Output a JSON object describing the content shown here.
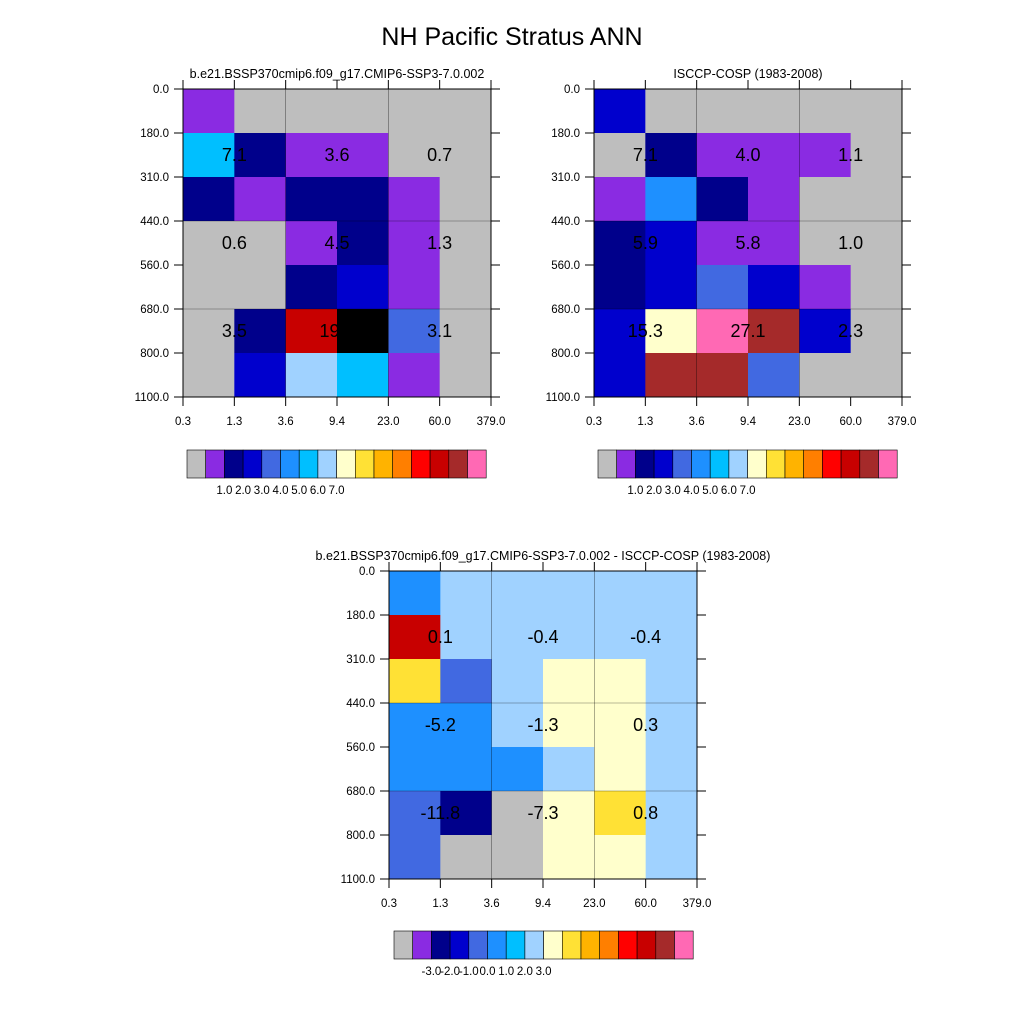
{
  "title": "NH Pacific Stratus ANN",
  "chart_data": [
    {
      "type": "heatmap",
      "title": "b.e21.BSSP370cmip6.f09_g17.CMIP6-SSP3-7.0.002",
      "x_tick_labels": [
        "0.3",
        "1.3",
        "3.6",
        "9.4",
        "23.0",
        "60.0",
        "379.0"
      ],
      "y_tick_labels": [
        "0.0",
        "180.0",
        "310.0",
        "440.0",
        "560.0",
        "680.0",
        "800.0",
        "1100.0"
      ],
      "color_index_grid": [
        [
          1,
          0,
          0,
          0,
          0,
          0
        ],
        [
          6,
          2,
          1,
          1,
          0,
          0
        ],
        [
          2,
          1,
          2,
          2,
          1,
          0
        ],
        [
          0,
          0,
          1,
          2,
          1,
          0
        ],
        [
          0,
          0,
          2,
          3,
          1,
          0
        ],
        [
          0,
          2,
          13,
          17,
          4,
          0
        ],
        [
          0,
          3,
          7,
          6,
          1,
          0
        ]
      ],
      "values": [
        {
          "row": 1,
          "col": 1,
          "text": "7.1"
        },
        {
          "row": 1,
          "col": 3,
          "text": "3.6"
        },
        {
          "row": 1,
          "col": 5,
          "text": "0.7"
        },
        {
          "row": 3,
          "col": 1,
          "text": "0.6"
        },
        {
          "row": 3,
          "col": 3,
          "text": "4.5"
        },
        {
          "row": 3,
          "col": 5,
          "text": "1.3"
        },
        {
          "row": 5,
          "col": 1,
          "text": "3.5"
        },
        {
          "row": 5,
          "col": 3,
          "text": "19.8"
        },
        {
          "row": 5,
          "col": 5,
          "text": "3.1"
        }
      ],
      "colorbar": {
        "colors": [
          "#bebebe",
          "#8a2be2",
          "#00008b",
          "#0000cd",
          "#4169e1",
          "#1e90ff",
          "#00bfff",
          "#a0d2ff",
          "#ffffcc",
          "#ffe135",
          "#ffb300",
          "#ff7f00",
          "#ff0000",
          "#c80000",
          "#a52a2a",
          "#ff69b4"
        ],
        "labels": [
          "1.0",
          "2.0",
          "3.0",
          "4.0",
          "5.0",
          "6.0",
          "7.0"
        ]
      }
    },
    {
      "type": "heatmap",
      "title": "ISCCP-COSP (1983-2008)",
      "x_tick_labels": [
        "0.3",
        "1.3",
        "3.6",
        "9.4",
        "23.0",
        "60.0",
        "379.0"
      ],
      "y_tick_labels": [
        "0.0",
        "180.0",
        "310.0",
        "440.0",
        "560.0",
        "680.0",
        "800.0",
        "1100.0"
      ],
      "color_index_grid": [
        [
          3,
          0,
          0,
          0,
          0,
          0
        ],
        [
          0,
          2,
          1,
          1,
          1,
          0
        ],
        [
          1,
          5,
          2,
          1,
          0,
          0
        ],
        [
          2,
          3,
          1,
          1,
          0,
          0
        ],
        [
          2,
          3,
          4,
          3,
          1,
          0
        ],
        [
          3,
          8,
          15,
          14,
          3,
          0
        ],
        [
          3,
          14,
          14,
          4,
          0,
          0
        ]
      ],
      "values": [
        {
          "row": 1,
          "col": 1,
          "text": "7.1"
        },
        {
          "row": 1,
          "col": 3,
          "text": "4.0"
        },
        {
          "row": 1,
          "col": 5,
          "text": "1.1"
        },
        {
          "row": 3,
          "col": 1,
          "text": "5.9"
        },
        {
          "row": 3,
          "col": 3,
          "text": "5.8"
        },
        {
          "row": 3,
          "col": 5,
          "text": "1.0"
        },
        {
          "row": 5,
          "col": 1,
          "text": "15.3"
        },
        {
          "row": 5,
          "col": 3,
          "text": "27.1"
        },
        {
          "row": 5,
          "col": 5,
          "text": "2.3"
        }
      ],
      "colorbar": {
        "colors": [
          "#bebebe",
          "#8a2be2",
          "#00008b",
          "#0000cd",
          "#4169e1",
          "#1e90ff",
          "#00bfff",
          "#a0d2ff",
          "#ffffcc",
          "#ffe135",
          "#ffb300",
          "#ff7f00",
          "#ff0000",
          "#c80000",
          "#a52a2a",
          "#ff69b4"
        ],
        "labels": [
          "1.0",
          "2.0",
          "3.0",
          "4.0",
          "5.0",
          "6.0",
          "7.0"
        ]
      }
    },
    {
      "type": "heatmap",
      "title": "b.e21.BSSP370cmip6.f09_g17.CMIP6-SSP3-7.0.002 - ISCCP-COSP (1983-2008)",
      "x_tick_labels": [
        "0.3",
        "1.3",
        "3.6",
        "9.4",
        "23.0",
        "60.0",
        "379.0"
      ],
      "y_tick_labels": [
        "0.0",
        "180.0",
        "310.0",
        "440.0",
        "560.0",
        "680.0",
        "800.0",
        "1100.0"
      ],
      "color_index_grid": [
        [
          5,
          7,
          7,
          7,
          7,
          7
        ],
        [
          13,
          7,
          7,
          7,
          7,
          7
        ],
        [
          9,
          4,
          7,
          8,
          8,
          7
        ],
        [
          5,
          5,
          7,
          8,
          8,
          7
        ],
        [
          5,
          5,
          5,
          7,
          8,
          7
        ],
        [
          4,
          2,
          0,
          8,
          9,
          7
        ],
        [
          4,
          0,
          0,
          8,
          8,
          7
        ]
      ],
      "values": [
        {
          "row": 1,
          "col": 1,
          "text": "0.1"
        },
        {
          "row": 1,
          "col": 3,
          "text": "-0.4"
        },
        {
          "row": 1,
          "col": 5,
          "text": "-0.4"
        },
        {
          "row": 3,
          "col": 1,
          "text": "-5.2"
        },
        {
          "row": 3,
          "col": 3,
          "text": "-1.3"
        },
        {
          "row": 3,
          "col": 5,
          "text": "0.3"
        },
        {
          "row": 5,
          "col": 1,
          "text": "-11.8"
        },
        {
          "row": 5,
          "col": 3,
          "text": "-7.3"
        },
        {
          "row": 5,
          "col": 5,
          "text": "0.8"
        }
      ],
      "colorbar": {
        "colors": [
          "#bebebe",
          "#8a2be2",
          "#00008b",
          "#0000cd",
          "#4169e1",
          "#1e90ff",
          "#00bfff",
          "#a0d2ff",
          "#ffffcc",
          "#ffe135",
          "#ffb300",
          "#ff7f00",
          "#ff0000",
          "#c80000",
          "#a52a2a",
          "#ff69b4"
        ],
        "labels": [
          "-3.0",
          "-2.0",
          "-1.0",
          "0.0",
          "1.0",
          "2.0",
          "3.0"
        ]
      }
    }
  ]
}
